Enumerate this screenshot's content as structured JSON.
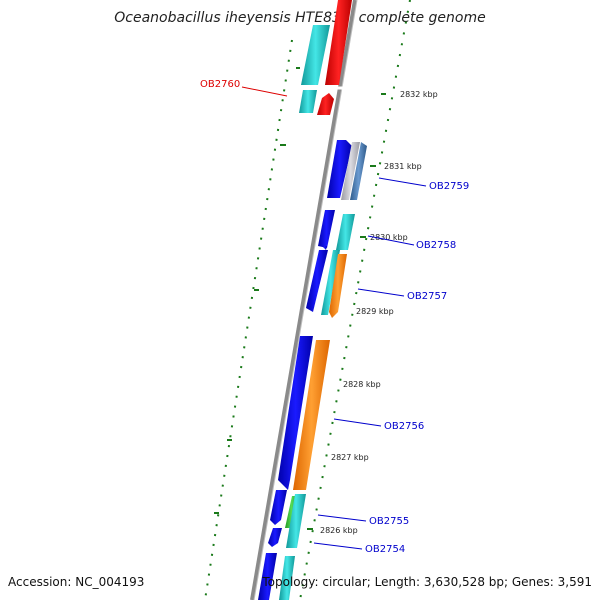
{
  "title": "Oceanobacillus iheyensis HTE831, complete genome",
  "footer": {
    "accession": "Accession: NC_004193",
    "topology": "Topology: circular; Length: 3,630,528 bp; Genes: 3,591"
  },
  "colors": {
    "background": "#ffffff",
    "backbone": "#888888",
    "gc_skew": "#1a7a1a",
    "gene_label_blue": "#0000cc",
    "gene_label_red": "#dd0000",
    "cds_blue": "#0000ee",
    "cds_cyan": "#22cccc",
    "cds_red": "#ee0000",
    "cds_orange": "#ff8800",
    "cds_green": "#33bb33",
    "cds_gray": "#b0b0b8",
    "cds_steel": "#4a7ab0"
  },
  "scale": {
    "ticks": [
      "2832 kbp",
      "2831 kbp",
      "2830 kbp",
      "2829 kbp",
      "2828 kbp",
      "2827 kbp",
      "2826 kbp"
    ]
  },
  "genes": [
    {
      "label": "OB2760",
      "color": "red"
    },
    {
      "label": "OB2759",
      "color": "blue"
    },
    {
      "label": "OB2758",
      "color": "blue"
    },
    {
      "label": "OB2757",
      "color": "blue"
    },
    {
      "label": "OB2756",
      "color": "blue"
    },
    {
      "label": "OB2755",
      "color": "blue"
    },
    {
      "label": "OB2754",
      "color": "blue"
    }
  ]
}
